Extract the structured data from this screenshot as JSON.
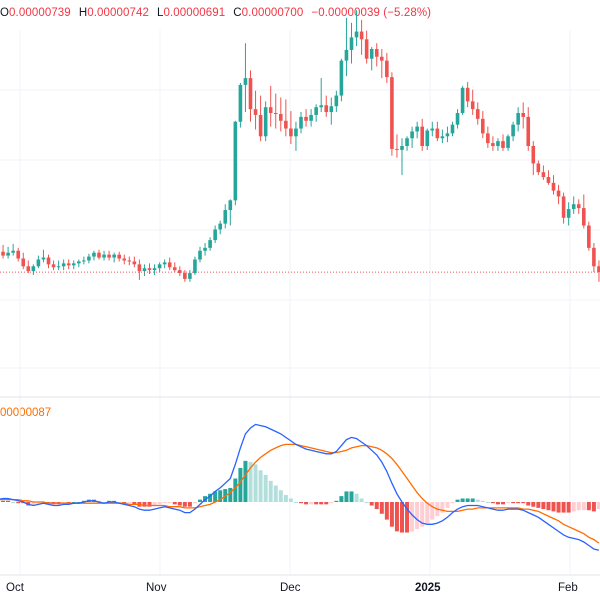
{
  "ohlc": {
    "o_label": "O",
    "o_value": "0.00000739",
    "h_label": "H",
    "h_value": "0.00000742",
    "l_label": "L",
    "l_value": "0.00000691",
    "c_label": "C",
    "c_value": "0.00000700",
    "change": "−0.00000039 (−5.28%)"
  },
  "macd_value": "00000087",
  "x_axis": {
    "labels": [
      "Oct",
      "Nov",
      "Dec",
      "2025",
      "Feb"
    ]
  },
  "colors": {
    "up": "#26a69a",
    "down": "#ef5350",
    "macd_line": "#2962ff",
    "signal_line": "#ff6d00",
    "grid": "#f0f3fa"
  },
  "chart_data": {
    "type": "candlestick",
    "last_close_marker": "dotted line at last price",
    "candles": [
      [
        86.0,
        93.0,
        83.0,
        91.0
      ],
      [
        91.0,
        98.0,
        84.0,
        87.0
      ],
      [
        87.0,
        96.0,
        84.0,
        90.0
      ],
      [
        90.0,
        99.0,
        87.0,
        92.0
      ],
      [
        92.0,
        95.0,
        81.0,
        84.0
      ],
      [
        84.0,
        90.0,
        73.0,
        76.0
      ],
      [
        76.0,
        82.0,
        69.0,
        71.0
      ],
      [
        71.0,
        78.0,
        67.0,
        76.0
      ],
      [
        76.0,
        87.0,
        74.0,
        83.0
      ],
      [
        83.0,
        93.0,
        80.0,
        85.0
      ],
      [
        85.0,
        88.0,
        74.0,
        78.0
      ],
      [
        78.0,
        82.0,
        72.0,
        75.0
      ],
      [
        75.0,
        82.0,
        72.0,
        76.0
      ],
      [
        76.0,
        83.0,
        72.0,
        79.0
      ],
      [
        79.0,
        83.0,
        73.0,
        77.0
      ],
      [
        77.0,
        82.0,
        73.0,
        79.0
      ],
      [
        79.0,
        83.0,
        75.0,
        81.0
      ],
      [
        81.0,
        86.0,
        78.0,
        82.0
      ],
      [
        82.0,
        89.0,
        79.0,
        86.0
      ],
      [
        86.0,
        92.0,
        82.0,
        90.0
      ],
      [
        90.0,
        93.0,
        83.0,
        85.0
      ],
      [
        85.0,
        92.0,
        82.0,
        88.0
      ],
      [
        88.0,
        92.0,
        82.0,
        85.0
      ],
      [
        85.0,
        90.0,
        80.0,
        88.0
      ],
      [
        88.0,
        91.0,
        81.0,
        84.0
      ],
      [
        84.0,
        88.0,
        78.0,
        82.0
      ],
      [
        82.0,
        86.0,
        77.0,
        81.0
      ],
      [
        81.0,
        86.0,
        75.0,
        78.0
      ],
      [
        78.0,
        83.0,
        62.0,
        71.0
      ],
      [
        71.0,
        78.0,
        66.0,
        74.0
      ],
      [
        74.0,
        79.0,
        68.0,
        72.0
      ],
      [
        72.0,
        78.0,
        67.0,
        74.0
      ],
      [
        74.0,
        80.0,
        70.0,
        78.0
      ],
      [
        78.0,
        83.0,
        74.0,
        80.0
      ],
      [
        80.0,
        85.0,
        72.0,
        75.0
      ],
      [
        75.0,
        80.0,
        70.0,
        72.0
      ],
      [
        72.0,
        76.0,
        66.0,
        69.0
      ],
      [
        69.0,
        72.0,
        60.0,
        63.0
      ],
      [
        63.0,
        72.0,
        60.0,
        69.0
      ],
      [
        69.0,
        86.0,
        67.0,
        83.0
      ],
      [
        83.0,
        96.0,
        80.0,
        92.0
      ],
      [
        92.0,
        100.0,
        87.0,
        95.0
      ],
      [
        95.0,
        106.0,
        92.0,
        103.0
      ],
      [
        103.0,
        118.0,
        100.0,
        114.0
      ],
      [
        114.0,
        123.0,
        109.0,
        120.0
      ],
      [
        120.0,
        140.0,
        115.0,
        134.0
      ],
      [
        134.0,
        145.0,
        118.0,
        144.0
      ],
      [
        144.0,
        226.0,
        139.0,
        225.0
      ],
      [
        225.0,
        265.0,
        219.0,
        263.0
      ],
      [
        263.0,
        306.0,
        235.0,
        270.0
      ],
      [
        270.0,
        278.0,
        225.0,
        238.0
      ],
      [
        238.0,
        257.0,
        217.0,
        232.0
      ],
      [
        232.0,
        252.0,
        205.0,
        210.0
      ],
      [
        210.0,
        246.0,
        205.0,
        240.0
      ],
      [
        240.0,
        262.0,
        220.0,
        234.0
      ],
      [
        234.0,
        254.0,
        218.0,
        233.0
      ],
      [
        233.0,
        250.0,
        215.0,
        226.0
      ],
      [
        226.0,
        248.0,
        210.0,
        218.0
      ],
      [
        218.0,
        236.0,
        202.0,
        210.0
      ],
      [
        210.0,
        225.0,
        195.0,
        218.0
      ],
      [
        218.0,
        235.0,
        213.0,
        230.0
      ],
      [
        230.0,
        238.0,
        220.0,
        226.0
      ],
      [
        226.0,
        238.0,
        220.0,
        232.0
      ],
      [
        232.0,
        243.0,
        225.0,
        240.0
      ],
      [
        240.0,
        270.0,
        235.0,
        242.0
      ],
      [
        242.0,
        252.0,
        230.0,
        235.0
      ],
      [
        235.0,
        250.0,
        222.0,
        241.0
      ],
      [
        241.0,
        257.0,
        235.0,
        252.0
      ],
      [
        252.0,
        290.0,
        246.0,
        288.0
      ],
      [
        288.0,
        332.0,
        272.0,
        299.0
      ],
      [
        299.0,
        327.0,
        285.0,
        312.0
      ],
      [
        312.0,
        340.0,
        303.0,
        318.0
      ],
      [
        318.0,
        330.0,
        294.0,
        310.0
      ],
      [
        310.0,
        319.0,
        285.0,
        290.0
      ],
      [
        290.0,
        302.0,
        278.0,
        300.0
      ],
      [
        300.0,
        306.0,
        282.0,
        292.0
      ],
      [
        292.0,
        300.0,
        270.0,
        288.0
      ],
      [
        288.0,
        296.0,
        265.0,
        271.0
      ],
      [
        271.0,
        276.0,
        190.0,
        197.0
      ],
      [
        197.0,
        212.0,
        188.0,
        196.0
      ],
      [
        196.0,
        208.0,
        170.0,
        200.0
      ],
      [
        200.0,
        210.0,
        195.0,
        208.0
      ],
      [
        208.0,
        220.0,
        198.0,
        215.0
      ],
      [
        215.0,
        225.0,
        208.0,
        220.0
      ],
      [
        220.0,
        228.0,
        195.0,
        200.0
      ],
      [
        200.0,
        218.0,
        196.0,
        216.0
      ],
      [
        216.0,
        225.0,
        210.0,
        218.0
      ],
      [
        218.0,
        225.0,
        205.0,
        208.0
      ],
      [
        208.0,
        217.0,
        203.0,
        210.0
      ],
      [
        210.0,
        220.0,
        204.0,
        213.0
      ],
      [
        213.0,
        225.0,
        210.0,
        222.0
      ],
      [
        222.0,
        238.0,
        218.0,
        234.0
      ],
      [
        234.0,
        262.0,
        232.0,
        260.0
      ],
      [
        260.0,
        266.0,
        240.0,
        246.0
      ],
      [
        246.0,
        258.0,
        232.0,
        238.0
      ],
      [
        238.0,
        245.0,
        222.0,
        228.0
      ],
      [
        228.0,
        236.0,
        208.0,
        213.0
      ],
      [
        213.0,
        220.0,
        198.0,
        203.0
      ],
      [
        203.0,
        210.0,
        195.0,
        200.0
      ],
      [
        200.0,
        208.0,
        195.0,
        205.0
      ],
      [
        205.0,
        212.0,
        195.0,
        198.0
      ],
      [
        198.0,
        212.0,
        195.0,
        210.0
      ],
      [
        210.0,
        225.0,
        205.0,
        222.0
      ],
      [
        222.0,
        240.0,
        215.0,
        234.0
      ],
      [
        234.0,
        245.0,
        218.0,
        230.0
      ],
      [
        230.0,
        240.0,
        195.0,
        200.0
      ],
      [
        200.0,
        205.0,
        170.0,
        182.0
      ],
      [
        182.0,
        185.0,
        170.0,
        173.0
      ],
      [
        173.0,
        180.0,
        165.0,
        168.0
      ],
      [
        168.0,
        175.0,
        160.0,
        162.0
      ],
      [
        162.0,
        170.0,
        150.0,
        154.0
      ],
      [
        154.0,
        160.0,
        140.0,
        148.0
      ],
      [
        148.0,
        152.0,
        120.0,
        126.0
      ],
      [
        126.0,
        142.0,
        118.0,
        135.0
      ],
      [
        135.0,
        148.0,
        130.0,
        140.0
      ],
      [
        140.0,
        145.0,
        130.0,
        136.0
      ],
      [
        136.0,
        150.0,
        115.0,
        118.0
      ],
      [
        118.0,
        122.0,
        92.0,
        95.0
      ],
      [
        95.0,
        100.0,
        70.0,
        76.0
      ],
      [
        76.0,
        82.0,
        60.0,
        70.0
      ]
    ],
    "macd": [
      0.1,
      0.15,
      0.15,
      0.1,
      0.05,
      0.0,
      -0.1,
      -0.15,
      -0.1,
      -0.05,
      -0.1,
      -0.15,
      -0.15,
      -0.1,
      -0.1,
      -0.05,
      -0.05,
      0.0,
      0.05,
      0.05,
      0.0,
      -0.05,
      0.0,
      0.0,
      -0.05,
      -0.1,
      -0.15,
      -0.2,
      -0.3,
      -0.35,
      -0.35,
      -0.3,
      -0.25,
      -0.2,
      -0.25,
      -0.3,
      -0.35,
      -0.45,
      -0.45,
      -0.3,
      -0.1,
      0.1,
      0.25,
      0.45,
      0.6,
      0.8,
      1.0,
      1.6,
      2.3,
      2.9,
      3.15,
      3.3,
      3.25,
      3.2,
      3.1,
      3.0,
      2.9,
      2.75,
      2.6,
      2.45,
      2.35,
      2.25,
      2.2,
      2.15,
      2.1,
      2.05,
      2.05,
      2.15,
      2.4,
      2.65,
      2.75,
      2.7,
      2.55,
      2.4,
      2.2,
      2.0,
      1.7,
      1.3,
      0.8,
      0.35,
      0.0,
      -0.3,
      -0.55,
      -0.75,
      -0.9,
      -0.95,
      -0.95,
      -0.9,
      -0.8,
      -0.65,
      -0.45,
      -0.3,
      -0.2,
      -0.15,
      -0.15,
      -0.15,
      -0.2,
      -0.25,
      -0.3,
      -0.35,
      -0.35,
      -0.3,
      -0.3,
      -0.3,
      -0.35,
      -0.45,
      -0.55,
      -0.65,
      -0.8,
      -0.95,
      -1.1,
      -1.25,
      -1.4,
      -1.5,
      -1.55,
      -1.6,
      -1.7,
      -1.85,
      -2.0,
      -2.05
    ],
    "signal": [
      0.1,
      0.1,
      0.1,
      0.1,
      0.1,
      0.05,
      0.05,
      0.0,
      0.0,
      0.0,
      -0.05,
      -0.05,
      -0.05,
      -0.05,
      -0.05,
      -0.05,
      -0.05,
      -0.05,
      -0.05,
      -0.05,
      -0.05,
      -0.05,
      -0.05,
      -0.05,
      -0.05,
      -0.05,
      -0.1,
      -0.1,
      -0.1,
      -0.15,
      -0.15,
      -0.15,
      -0.15,
      -0.15,
      -0.2,
      -0.2,
      -0.2,
      -0.25,
      -0.25,
      -0.25,
      -0.2,
      -0.15,
      -0.1,
      0.0,
      0.1,
      0.25,
      0.4,
      0.6,
      0.85,
      1.15,
      1.45,
      1.7,
      1.9,
      2.05,
      2.2,
      2.3,
      2.4,
      2.45,
      2.45,
      2.45,
      2.4,
      2.35,
      2.3,
      2.25,
      2.2,
      2.15,
      2.1,
      2.1,
      2.15,
      2.2,
      2.3,
      2.35,
      2.4,
      2.4,
      2.35,
      2.3,
      2.2,
      2.05,
      1.85,
      1.6,
      1.3,
      1.0,
      0.7,
      0.4,
      0.15,
      -0.05,
      -0.2,
      -0.3,
      -0.35,
      -0.4,
      -0.4,
      -0.4,
      -0.35,
      -0.3,
      -0.3,
      -0.25,
      -0.25,
      -0.25,
      -0.25,
      -0.25,
      -0.25,
      -0.25,
      -0.25,
      -0.25,
      -0.3,
      -0.3,
      -0.35,
      -0.4,
      -0.5,
      -0.6,
      -0.7,
      -0.8,
      -0.95,
      -1.05,
      -1.15,
      -1.25,
      -1.35,
      -1.5,
      -1.6,
      -1.75
    ]
  }
}
